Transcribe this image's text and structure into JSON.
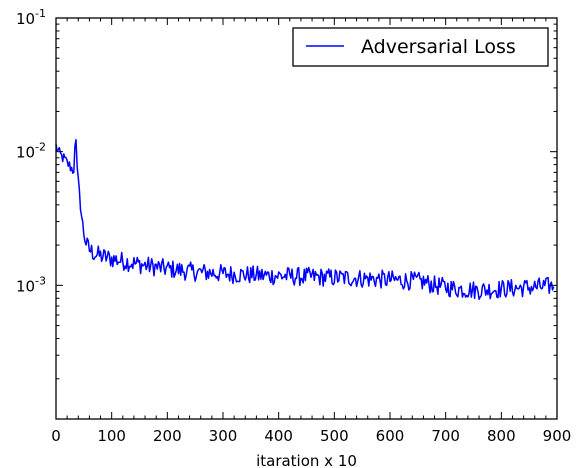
{
  "chart_data": {
    "type": "line",
    "xlabel": "itaration x 10",
    "ylabel": "",
    "xlim": [
      0,
      900
    ],
    "ylim": [
      0.0001,
      0.1
    ],
    "yscale": "log",
    "grid": false,
    "legend_position": "top-right",
    "x_ticks": [
      "0",
      "100",
      "200",
      "300",
      "400",
      "500",
      "600",
      "700",
      "800",
      "900"
    ],
    "x_tick_values": [
      0,
      100,
      200,
      300,
      400,
      500,
      600,
      700,
      800,
      900
    ],
    "y_ticks": [
      {
        "value": 0.001,
        "base": "10",
        "exp": "-3"
      },
      {
        "value": 0.01,
        "base": "10",
        "exp": "-2"
      },
      {
        "value": 0.1,
        "base": "10",
        "exp": "-1"
      }
    ],
    "series": [
      {
        "name": "Adversarial Loss",
        "color": "#0000ff",
        "x": [
          0,
          5,
          10,
          15,
          20,
          25,
          30,
          33,
          35,
          38,
          42,
          46,
          50,
          55,
          60,
          65,
          70,
          80,
          90,
          100,
          120,
          140,
          160,
          180,
          200,
          220,
          240,
          260,
          280,
          300,
          320,
          340,
          360,
          380,
          400,
          420,
          440,
          460,
          480,
          500,
          520,
          540,
          560,
          580,
          600,
          620,
          640,
          660,
          680,
          700,
          720,
          740,
          760,
          780,
          800,
          820,
          840,
          860,
          880,
          895
        ],
        "values": [
          0.011,
          0.0098,
          0.0092,
          0.0088,
          0.0082,
          0.0078,
          0.0073,
          0.0075,
          0.016,
          0.0072,
          0.0048,
          0.0033,
          0.0025,
          0.002,
          0.00185,
          0.00178,
          0.00172,
          0.00166,
          0.00162,
          0.00158,
          0.00152,
          0.00146,
          0.00141,
          0.00137,
          0.00133,
          0.0013,
          0.00127,
          0.00125,
          0.00124,
          0.00122,
          0.00121,
          0.0012,
          0.00119,
          0.00118,
          0.00118,
          0.00117,
          0.00116,
          0.00116,
          0.00115,
          0.00114,
          0.00114,
          0.00113,
          0.00112,
          0.00111,
          0.0011,
          0.00109,
          0.00108,
          0.00106,
          0.001,
          0.00097,
          0.00094,
          0.00093,
          0.00092,
          0.00093,
          0.00094,
          0.00095,
          0.00096,
          0.00097,
          0.00098,
          0.00099
        ]
      }
    ]
  }
}
